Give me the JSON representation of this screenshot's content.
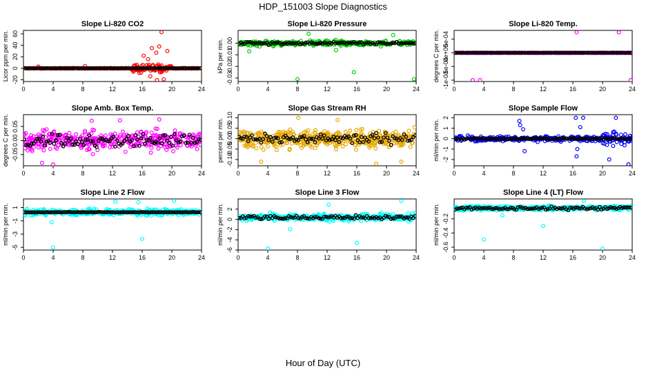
{
  "title": "HDP_151003  Slope Diagnostics",
  "global_xlabel": "Hour of Day (UTC)",
  "chart_data": [
    {
      "type": "scatter",
      "title": "Slope Li-820 CO2",
      "ylabel": "Licor ppm per min.",
      "xlim": [
        0,
        24
      ],
      "ylim": [
        -23,
        66
      ],
      "yticks": [
        "-20",
        "0",
        "20",
        "40",
        "60"
      ],
      "ytick_values": [
        -20,
        0,
        20,
        40,
        60
      ],
      "xticks": [
        "0",
        "4",
        "8",
        "12",
        "16",
        "20",
        "24"
      ],
      "color": "#ff0000",
      "gen": {
        "base": 0,
        "spread": 0.6,
        "mean_spread": 0.3,
        "n": 300,
        "burst": {
          "from": 14.5,
          "to": 20,
          "spread": 9
        }
      },
      "outliers": [
        [
          16.2,
          22
        ],
        [
          16.8,
          16
        ],
        [
          17.3,
          35
        ],
        [
          17.9,
          27
        ],
        [
          18.3,
          38
        ],
        [
          18.6,
          63
        ],
        [
          19.4,
          30
        ],
        [
          18.0,
          -21
        ],
        [
          18.9,
          -19
        ],
        [
          17.1,
          -14
        ],
        [
          15.6,
          -8
        ],
        [
          2.0,
          3
        ],
        [
          8.3,
          4
        ],
        [
          14.8,
          -6
        ]
      ]
    },
    {
      "type": "scatter",
      "title": "Slope Li-820 Pressure",
      "ylabel": "kPa per min.",
      "xlim": [
        0,
        24
      ],
      "ylim": [
        -0.033,
        0.011
      ],
      "yticks": [
        "-0.03",
        "-0.02",
        "-0.01",
        "0.00"
      ],
      "ytick_values": [
        -0.03,
        -0.02,
        -0.01,
        0.0
      ],
      "xticks": [
        "0",
        "4",
        "8",
        "12",
        "16",
        "20",
        "24"
      ],
      "color": "#00cc00",
      "gen": {
        "base": 0,
        "spread": 0.003,
        "mean_spread": 0.0015,
        "n": 300
      },
      "outliers": [
        [
          8.0,
          -0.031
        ],
        [
          15.6,
          -0.025
        ],
        [
          23.7,
          -0.031
        ],
        [
          9.5,
          0.008
        ],
        [
          20.9,
          0.007
        ],
        [
          1.5,
          -0.007
        ],
        [
          13.2,
          -0.006
        ]
      ]
    },
    {
      "type": "scatter",
      "title": "Slope Li-820 Temp.",
      "ylabel": "degrees C per min.",
      "xlim": [
        0,
        24
      ],
      "ylim": [
        -0.00105,
        0.00082
      ],
      "yticks": [
        "-1e-03",
        "-5e-04",
        "0e+00",
        "5e-04"
      ],
      "ytick_values": [
        -0.001,
        -0.0005,
        0,
        0.0005
      ],
      "xticks": [
        "0",
        "4",
        "8",
        "12",
        "16",
        "20",
        "24"
      ],
      "color": "#ff00ff",
      "gen": {
        "base": 0,
        "spread": 4e-06,
        "mean_spread": 2e-06,
        "n": 300
      },
      "outliers": [
        [
          0.1,
          0.0
        ],
        [
          2.5,
          -0.001
        ],
        [
          3.5,
          -0.001
        ],
        [
          16.5,
          0.00075
        ],
        [
          22.2,
          0.00075
        ],
        [
          23.8,
          -0.001
        ]
      ]
    },
    {
      "type": "scatter",
      "title": "Slope Amb. Box Temp.",
      "ylabel": "degrees C per min.",
      "xlim": [
        0,
        24
      ],
      "ylim": [
        -0.09,
        0.092
      ],
      "yticks": [
        "-0.05",
        "0.00",
        "0.05"
      ],
      "ytick_values": [
        -0.05,
        0.0,
        0.05
      ],
      "xticks": [
        "0",
        "4",
        "8",
        "12",
        "16",
        "20",
        "24"
      ],
      "color": "#ff00ff",
      "gen": {
        "base": 0,
        "spread": 0.045,
        "mean_spread": 0.03,
        "n": 400
      },
      "outliers": [
        [
          4.0,
          -0.085
        ],
        [
          9.2,
          0.07
        ],
        [
          18.3,
          0.075
        ],
        [
          2.5,
          -0.08
        ],
        [
          13.0,
          0.072
        ]
      ]
    },
    {
      "type": "scatter",
      "title": "Slope Gas Stream RH",
      "ylabel": "percent per min.",
      "xlim": [
        0,
        24
      ],
      "ylim": [
        -0.13,
        0.115
      ],
      "yticks": [
        "-0.10",
        "-0.05",
        "0.00",
        "0.05",
        "0.10"
      ],
      "ytick_values": [
        -0.1,
        -0.05,
        0.0,
        0.05,
        0.1
      ],
      "xticks": [
        "0",
        "4",
        "8",
        "12",
        "16",
        "20",
        "24"
      ],
      "color": "#e8a800",
      "gen": {
        "base": 0,
        "spread": 0.06,
        "mean_spread": 0.035,
        "n": 450
      },
      "outliers": [
        [
          3.1,
          -0.11
        ],
        [
          13.4,
          0.09
        ],
        [
          18.6,
          -0.12
        ],
        [
          8.1,
          0.1
        ],
        [
          22.0,
          -0.11
        ]
      ]
    },
    {
      "type": "scatter",
      "title": "Slope Sample Flow",
      "ylabel": "ml/min per min.",
      "xlim": [
        0,
        24
      ],
      "ylim": [
        -2.6,
        2.3
      ],
      "yticks": [
        "-2",
        "-1",
        "0",
        "1",
        "2"
      ],
      "ytick_values": [
        -2,
        -1,
        0,
        1,
        2
      ],
      "xticks": [
        "0",
        "4",
        "8",
        "12",
        "16",
        "20",
        "24"
      ],
      "color": "#0000ff",
      "gen": {
        "base": 0,
        "spread": 0.3,
        "mean_spread": 0.1,
        "n": 320,
        "burst": {
          "from": 20,
          "to": 24,
          "spread": 0.9
        }
      },
      "outliers": [
        [
          8.8,
          1.7
        ],
        [
          8.9,
          1.3
        ],
        [
          9.5,
          -1.2
        ],
        [
          16.4,
          2.0
        ],
        [
          16.5,
          -1.7
        ],
        [
          16.6,
          -1.0
        ],
        [
          17.4,
          2.0
        ],
        [
          20.9,
          -2.0
        ],
        [
          21.8,
          2.0
        ],
        [
          23.5,
          -2.5
        ],
        [
          9.3,
          0.9
        ],
        [
          17.0,
          1.1
        ]
      ]
    },
    {
      "type": "scatter",
      "title": "Slope Line 2 Flow",
      "ylabel": "ml/min per min.",
      "xlim": [
        0,
        24
      ],
      "ylim": [
        -5.4,
        2.3
      ],
      "yticks": [
        "-5",
        "-3",
        "-1",
        "1"
      ],
      "ytick_values": [
        -5,
        -3,
        -1,
        1
      ],
      "xticks": [
        "0",
        "4",
        "8",
        "12",
        "16",
        "20",
        "24"
      ],
      "color": "#00ffff",
      "gen": {
        "base": 0.3,
        "spread": 0.6,
        "mean_spread": 0.05,
        "n": 380
      },
      "outliers": [
        [
          4.0,
          -5.0
        ],
        [
          16.0,
          -3.7
        ],
        [
          12.4,
          1.9
        ],
        [
          15.5,
          1.8
        ],
        [
          20.3,
          2.0
        ],
        [
          3.8,
          -1.2
        ]
      ]
    },
    {
      "type": "scatter",
      "title": "Slope Line 3 Flow",
      "ylabel": "ml/min per min.",
      "xlim": [
        0,
        24
      ],
      "ylim": [
        -6.0,
        4.0
      ],
      "yticks": [
        "-6",
        "-4",
        "-2",
        "0",
        "2"
      ],
      "ytick_values": [
        -6,
        -4,
        -2,
        0,
        2
      ],
      "xticks": [
        "0",
        "4",
        "8",
        "12",
        "16",
        "20",
        "24"
      ],
      "color": "#00ffff",
      "gen": {
        "base": 0.4,
        "spread": 0.9,
        "mean_spread": 0.5,
        "n": 380
      },
      "outliers": [
        [
          4.0,
          -5.7
        ],
        [
          16.0,
          -4.6
        ],
        [
          22.0,
          3.6
        ],
        [
          12.2,
          2.9
        ],
        [
          7.0,
          -1.9
        ]
      ]
    },
    {
      "type": "scatter",
      "title": "Slope Line 4 (LT) Flow",
      "ylabel": "ml/min per min.",
      "xlim": [
        0,
        24
      ],
      "ylim": [
        -0.64,
        0.08
      ],
      "yticks": [
        "-0.6",
        "-0.4",
        "-0.2"
      ],
      "ytick_values": [
        -0.6,
        -0.4,
        -0.2
      ],
      "xticks": [
        "0",
        "4",
        "8",
        "12",
        "16",
        "20",
        "24"
      ],
      "color": "#00ffff",
      "gen": {
        "base": -0.05,
        "spread": 0.045,
        "mean_spread": 0.03,
        "n": 380
      },
      "outliers": [
        [
          4.0,
          -0.49
        ],
        [
          12.0,
          -0.3
        ],
        [
          20.0,
          -0.62
        ],
        [
          17.5,
          0.05
        ],
        [
          6.5,
          -0.15
        ]
      ]
    }
  ]
}
